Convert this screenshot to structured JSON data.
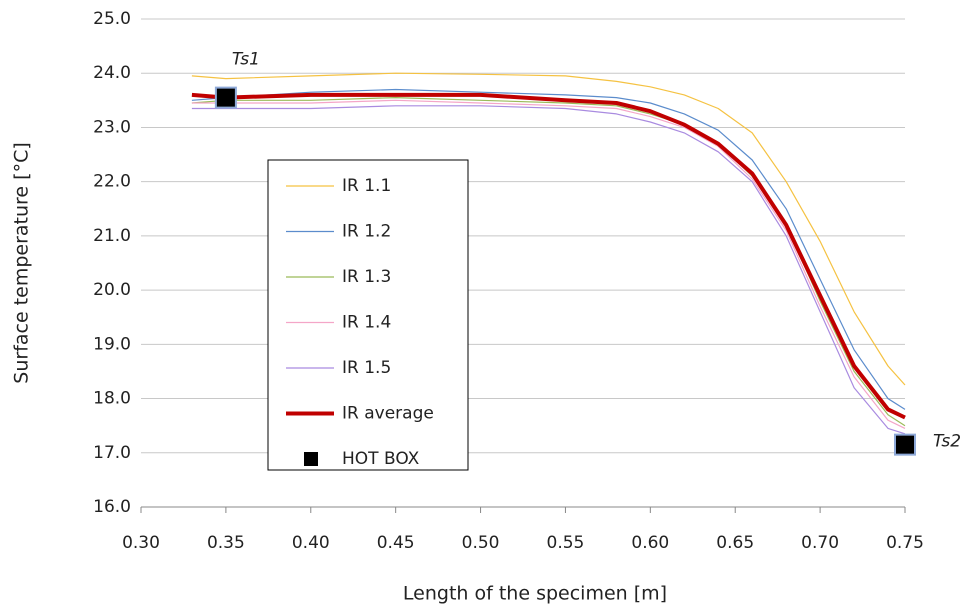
{
  "chart_data": {
    "type": "line",
    "x_label": "Length of the specimen [m]",
    "y_label": "Surface temperature [°C]",
    "xlim": [
      0.3,
      0.75
    ],
    "ylim": [
      16,
      25
    ],
    "xticks": [
      {
        "value": 0.3,
        "label": "0.30"
      },
      0.35,
      {
        "value": 0.4,
        "label": "0.40"
      },
      0.45,
      {
        "value": 0.5,
        "label": "0.50"
      },
      0.55,
      {
        "value": 0.6,
        "label": "0.60"
      },
      0.65,
      {
        "value": 0.7,
        "label": "0.70"
      },
      0.75
    ],
    "yticks": [
      {
        "value": 16,
        "label": "16.0"
      },
      {
        "value": 17,
        "label": "17.0"
      },
      {
        "value": 18,
        "label": "18.0"
      },
      {
        "value": 19,
        "label": "19.0"
      },
      {
        "value": 20,
        "label": "20.0"
      },
      {
        "value": 21,
        "label": "21.0"
      },
      {
        "value": 22,
        "label": "22.0"
      },
      {
        "value": 23,
        "label": "23.0"
      },
      {
        "value": 24,
        "label": "24.0"
      },
      {
        "value": 25,
        "label": "25.0"
      }
    ],
    "grid": true,
    "x": [
      0.33,
      0.35,
      0.4,
      0.45,
      0.5,
      0.55,
      0.58,
      0.6,
      0.62,
      0.64,
      0.66,
      0.68,
      0.7,
      0.72,
      0.74,
      0.75
    ],
    "series": [
      {
        "name": "IR 1.1",
        "color": "#f5c242",
        "width": 1.2,
        "values": [
          23.95,
          23.9,
          23.95,
          24.0,
          23.98,
          23.95,
          23.85,
          23.75,
          23.6,
          23.35,
          22.9,
          22.0,
          20.9,
          19.6,
          18.6,
          18.25
        ]
      },
      {
        "name": "IR 1.2",
        "color": "#5b8ccc",
        "width": 1.2,
        "values": [
          23.5,
          23.55,
          23.65,
          23.7,
          23.65,
          23.6,
          23.55,
          23.45,
          23.25,
          22.95,
          22.4,
          21.5,
          20.2,
          18.9,
          18.0,
          17.8
        ]
      },
      {
        "name": "IR 1.3",
        "color": "#9bbb59",
        "width": 1.2,
        "values": [
          23.45,
          23.5,
          23.5,
          23.55,
          23.5,
          23.45,
          23.4,
          23.25,
          23.05,
          22.7,
          22.1,
          21.2,
          19.8,
          18.5,
          17.7,
          17.5
        ]
      },
      {
        "name": "IR 1.4",
        "color": "#f4a6c8",
        "width": 1.2,
        "values": [
          23.45,
          23.45,
          23.45,
          23.5,
          23.45,
          23.4,
          23.35,
          23.2,
          23.0,
          22.65,
          22.05,
          21.1,
          19.7,
          18.4,
          17.6,
          17.45
        ]
      },
      {
        "name": "IR 1.5",
        "color": "#a98be0",
        "width": 1.2,
        "values": [
          23.35,
          23.35,
          23.35,
          23.4,
          23.4,
          23.35,
          23.25,
          23.1,
          22.9,
          22.55,
          22.0,
          21.0,
          19.6,
          18.2,
          17.45,
          17.35
        ]
      },
      {
        "name": "IR average",
        "color": "#c00000",
        "width": 4,
        "values": [
          23.6,
          23.55,
          23.6,
          23.6,
          23.6,
          23.5,
          23.45,
          23.3,
          23.05,
          22.7,
          22.15,
          21.2,
          19.9,
          18.6,
          17.8,
          17.65
        ]
      },
      {
        "name": "HOT BOX",
        "color": "#000000",
        "marker": "square",
        "x": [
          0.35,
          0.75
        ],
        "values": [
          23.55,
          17.15
        ]
      }
    ],
    "annotations": [
      "Ts1",
      "Ts2"
    ]
  }
}
